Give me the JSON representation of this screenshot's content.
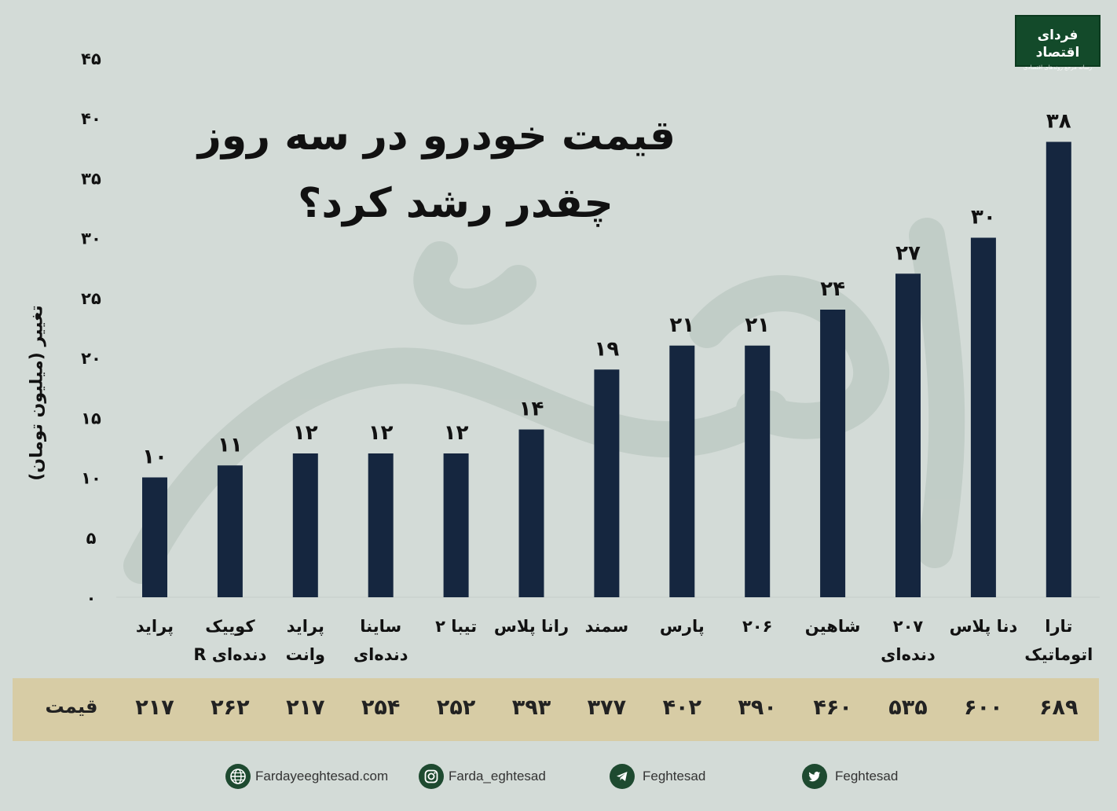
{
  "title": {
    "line1": "قیمت خودرو در سه روز",
    "line2": "چقدر رشد کرد؟"
  },
  "logo": {
    "name": "فردای اقتصاد",
    "tagline": "رسانه مرجع روندهای اقتصادی"
  },
  "colors": {
    "background": "#d3dbd7",
    "bar": "#15263f",
    "price_band": "#d7cca5",
    "logo_green": "#134a2a"
  },
  "chart_data": {
    "type": "bar",
    "title": "قیمت خودرو در سه روز چقدر رشد کرد؟",
    "ylabel": "تغییر (میلیون تومان)",
    "ylim": [
      0,
      45
    ],
    "yticks": [
      "۰",
      "۵",
      "۱۰",
      "۱۵",
      "۲۰",
      "۲۵",
      "۳۰",
      "۳۵",
      "۴۰",
      "۴۵"
    ],
    "grid": false,
    "legend": "none",
    "categories": [
      [
        "پراید"
      ],
      [
        "کوییک",
        "دنده‌ای R"
      ],
      [
        "پراید",
        "وانت"
      ],
      [
        "ساینا",
        "دنده‌ای"
      ],
      [
        "تیبا ۲"
      ],
      [
        "رانا پلاس"
      ],
      [
        "سمند"
      ],
      [
        "پارس"
      ],
      [
        "۲۰۶"
      ],
      [
        "شاهین"
      ],
      [
        "۲۰۷",
        "دنده‌ای"
      ],
      [
        "دنا پلاس"
      ],
      [
        "تارا",
        "اتوماتیک"
      ]
    ],
    "values": [
      10,
      11,
      12,
      12,
      12,
      14,
      19,
      21,
      21,
      24,
      27,
      30,
      38
    ],
    "value_labels": [
      "۱۰",
      "۱۱",
      "۱۲",
      "۱۲",
      "۱۲",
      "۱۴",
      "۱۹",
      "۲۱",
      "۲۱",
      "۲۴",
      "۲۷",
      "۳۰",
      "۳۸"
    ]
  },
  "price_row": {
    "label": "قیمت",
    "values": [
      "۲۱۷",
      "۲۶۲",
      "۲۱۷",
      "۲۵۴",
      "۲۵۲",
      "۳۹۳",
      "۳۷۷",
      "۴۰۲",
      "۳۹۰",
      "۴۶۰",
      "۵۳۵",
      "۶۰۰",
      "۶۸۹"
    ]
  },
  "footer": {
    "website": "Fardayeeghtesad.com",
    "instagram": "Farda_eghtesad",
    "telegram": "Feghtesad",
    "twitter": "Feghtesad"
  }
}
